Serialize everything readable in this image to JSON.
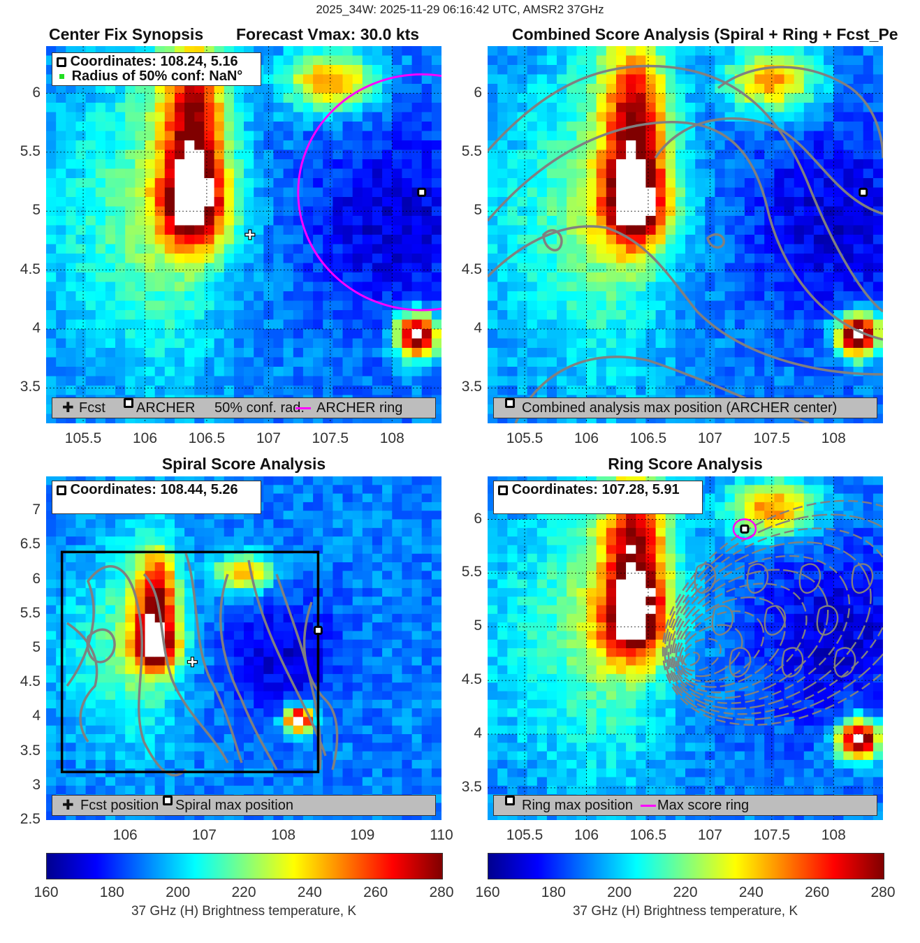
{
  "suptitle": "2025_34W: 2025-11-29 06:16:42 UTC, AMSR2 37GHz",
  "colors": {
    "ring": "#ff00ff",
    "contour": "#808080",
    "legend_bg": "#bdbdbd"
  },
  "chart_data": [
    {
      "type": "heatmap",
      "title_left": "Center Fix Synopsis",
      "title_right": "Forecast Vmax: 30.0 kts",
      "xlim": [
        105.2,
        108.4
      ],
      "ylim": [
        3.2,
        6.4
      ],
      "xticks": [
        "105.5",
        "106",
        "106.5",
        "107",
        "107.5",
        "108"
      ],
      "yticks": [
        "3.5",
        "4",
        "4.5",
        "5",
        "5.5",
        "6"
      ],
      "grid": true,
      "info": [
        "Coordinates: 108.24, 5.16",
        "Radius of 50% conf: NaN°"
      ],
      "legend": [
        "Fcst",
        "ARCHER",
        "50% conf. rad.",
        "ARCHER ring"
      ],
      "points": {
        "fcst": [
          106.85,
          4.8
        ],
        "archer": [
          108.24,
          5.16
        ]
      },
      "ring": {
        "center": [
          108.24,
          5.16
        ],
        "radius_deg": 1.0
      }
    },
    {
      "type": "heatmap",
      "title": "Combined Score Analysis (Spiral + Ring + Fcst_Pe",
      "xlim": [
        105.2,
        108.4
      ],
      "ylim": [
        3.2,
        6.4
      ],
      "xticks": [
        "105.5",
        "106",
        "106.5",
        "107",
        "107.5",
        "108"
      ],
      "yticks": [
        "3.5",
        "4",
        "4.5",
        "5",
        "5.5",
        "6"
      ],
      "grid": true,
      "legend": [
        "Combined analysis max position (ARCHER center)"
      ],
      "points": {
        "archer": [
          108.24,
          5.16
        ]
      }
    },
    {
      "type": "heatmap",
      "title": "Spiral Score Analysis",
      "xlim": [
        105,
        110
      ],
      "ylim": [
        2.5,
        7.5
      ],
      "xticks": [
        "106",
        "107",
        "108",
        "109",
        "110"
      ],
      "yticks": [
        "2.5",
        "3",
        "3.5",
        "4",
        "4.5",
        "5",
        "5.5",
        "6",
        "6.5",
        "7"
      ],
      "grid": false,
      "info": [
        "Coordinates: 108.44, 5.26"
      ],
      "legend": [
        "Fcst position",
        "Spiral max position"
      ],
      "points": {
        "fcst": [
          106.85,
          4.8
        ],
        "spiral": [
          108.44,
          5.26
        ]
      },
      "box": {
        "x": [
          105.2,
          108.44
        ],
        "y": [
          3.2,
          6.4
        ]
      }
    },
    {
      "type": "heatmap",
      "title": "Ring Score Analysis",
      "xlim": [
        105.2,
        108.4
      ],
      "ylim": [
        3.2,
        6.4
      ],
      "xticks": [
        "105.5",
        "106",
        "106.5",
        "107",
        "107.5",
        "108"
      ],
      "yticks": [
        "3.5",
        "4",
        "4.5",
        "5",
        "5.5",
        "6"
      ],
      "grid": true,
      "info": [
        "Coordinates: 107.28, 5.91"
      ],
      "legend": [
        "Ring max position",
        "Max score ring"
      ],
      "points": {
        "ring_max": [
          107.28,
          5.91
        ]
      }
    }
  ],
  "colorbars": [
    {
      "ticks": [
        "160",
        "180",
        "200",
        "220",
        "240",
        "260",
        "280"
      ],
      "label": "37 GHz (H) Brightness temperature, K"
    },
    {
      "ticks": [
        "160",
        "180",
        "200",
        "220",
        "240",
        "260",
        "280"
      ],
      "label": "37 GHz (H) Brightness temperature, K"
    }
  ]
}
